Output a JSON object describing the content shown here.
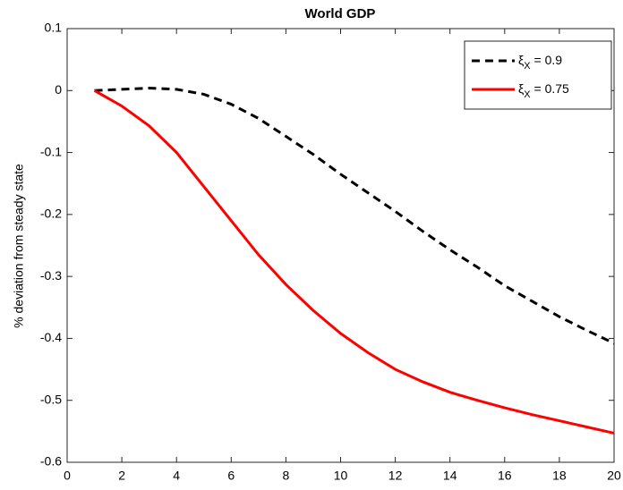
{
  "chart_data": {
    "type": "line",
    "title": "World GDP",
    "y_label": "% deviation from steady state",
    "x": [
      1,
      2,
      3,
      4,
      5,
      6,
      7,
      8,
      9,
      10,
      11,
      12,
      13,
      14,
      15,
      16,
      17,
      18,
      19,
      20
    ],
    "series": [
      {
        "name": "ξX = 0.9",
        "color": "#000000",
        "dash": true,
        "values": [
          0,
          0.002,
          0.004,
          0.002,
          -0.006,
          -0.022,
          -0.045,
          -0.074,
          -0.103,
          -0.135,
          -0.165,
          -0.195,
          -0.227,
          -0.257,
          -0.285,
          -0.315,
          -0.34,
          -0.365,
          -0.387,
          -0.408
        ]
      },
      {
        "name": "ξX = 0.75",
        "color": "#ff0000",
        "dash": false,
        "values": [
          0,
          -0.025,
          -0.057,
          -0.1,
          -0.155,
          -0.21,
          -0.265,
          -0.313,
          -0.355,
          -0.392,
          -0.423,
          -0.45,
          -0.47,
          -0.487,
          -0.5,
          -0.512,
          -0.523,
          -0.533,
          -0.543,
          -0.553
        ]
      }
    ],
    "xlim": [
      0,
      20
    ],
    "xticks": [
      0,
      2,
      4,
      6,
      8,
      10,
      12,
      14,
      16,
      18,
      20
    ],
    "ylim": [
      -0.6,
      0.1
    ],
    "yticks": [
      0.1,
      0,
      -0.1,
      -0.2,
      -0.3,
      -0.4,
      -0.5,
      -0.6
    ],
    "grid": false,
    "legend_position": "upper right"
  }
}
